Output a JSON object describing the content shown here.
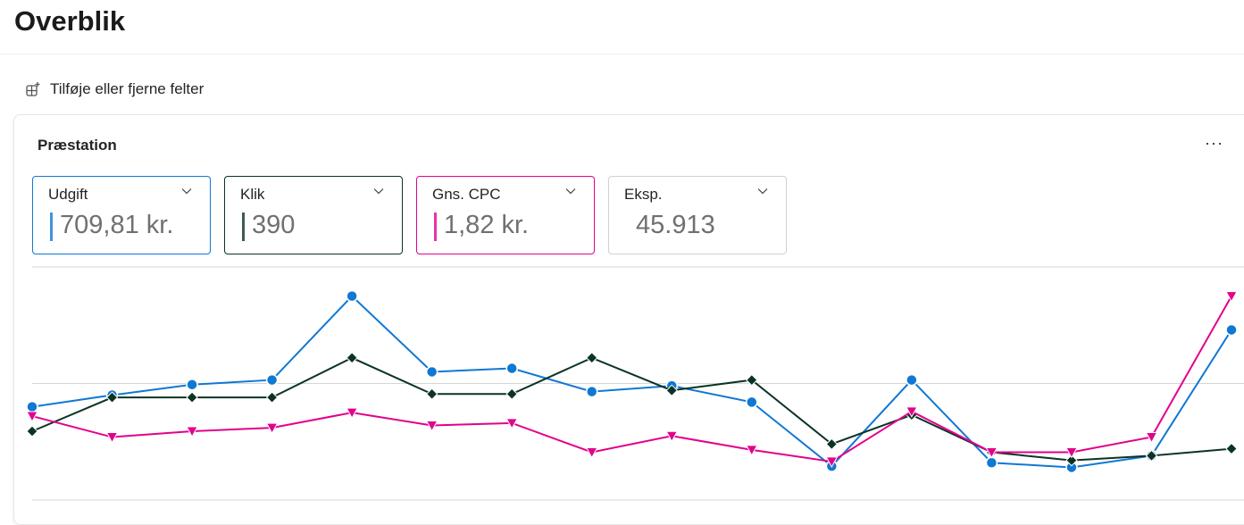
{
  "page_title": "Overblik",
  "add_fields_label": "Tilføje eller fjerne felter",
  "card_title": "Præstation",
  "more_label": "···",
  "tiles": [
    {
      "label": "Udgift",
      "value": "709,81 kr.",
      "color": "#0f78d4",
      "selected": true
    },
    {
      "label": "Klik",
      "value": "390",
      "color": "#0b3325",
      "selected": true
    },
    {
      "label": "Gns. CPC",
      "value": "1,82 kr.",
      "color": "#e3008c",
      "selected": true
    },
    {
      "label": "Eksp.",
      "value": "45.913",
      "color": "#d1d1d1",
      "selected": false
    }
  ],
  "chart_data": {
    "type": "line",
    "x": [
      1,
      2,
      3,
      4,
      5,
      6,
      7,
      8,
      9,
      10,
      11,
      12,
      13,
      14,
      15,
      16
    ],
    "ylim": [
      0,
      2
    ],
    "grid": true,
    "series": [
      {
        "name": "Udgift",
        "color": "#0f78d4",
        "marker": "circle",
        "values": [
          0.8,
          0.9,
          0.99,
          1.03,
          1.75,
          1.1,
          1.13,
          0.93,
          0.98,
          0.84,
          0.29,
          1.03,
          0.32,
          0.28,
          0.38,
          1.46
        ]
      },
      {
        "name": "Klik",
        "color": "#0b3325",
        "marker": "diamond",
        "values": [
          0.59,
          0.88,
          0.88,
          0.88,
          1.22,
          0.91,
          0.91,
          1.22,
          0.94,
          1.03,
          0.48,
          0.73,
          0.41,
          0.34,
          0.38,
          0.44
        ]
      },
      {
        "name": "Gns. CPC",
        "color": "#e3008c",
        "marker": "triangle-down",
        "values": [
          0.72,
          0.54,
          0.59,
          0.62,
          0.75,
          0.64,
          0.66,
          0.41,
          0.55,
          0.43,
          0.33,
          0.76,
          0.41,
          0.41,
          0.54,
          1.75
        ]
      }
    ]
  }
}
